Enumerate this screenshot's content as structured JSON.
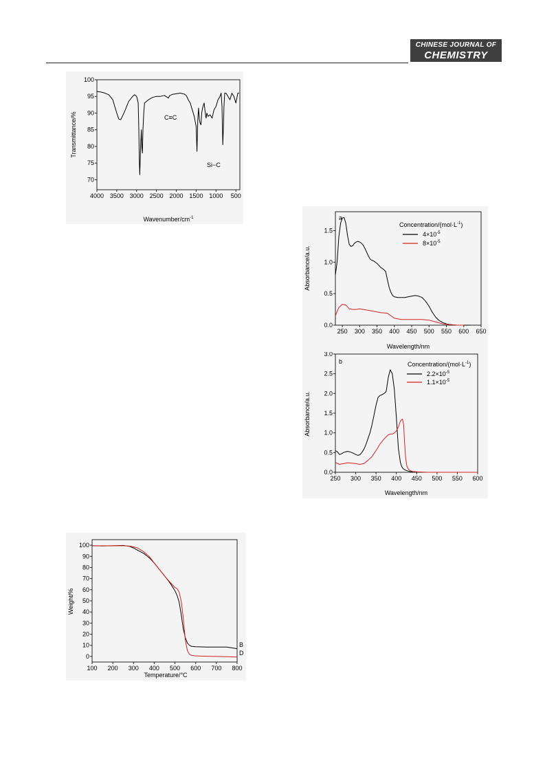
{
  "header": {
    "journal_line1": "CHINESE JOURNAL OF",
    "journal_line2": "CHEMISTRY"
  },
  "chart_data": [
    {
      "id": "ir",
      "type": "line",
      "xlabel": "Wavenumber/cm-1",
      "ylabel": "Transmittance/%",
      "xlim": [
        4000,
        400
      ],
      "ylim": [
        67,
        100
      ],
      "xticks": [
        4000,
        3500,
        3000,
        2500,
        2000,
        1500,
        1000,
        500
      ],
      "yticks": [
        70,
        75,
        80,
        85,
        90,
        95,
        100
      ],
      "annotations": [
        "C≡C",
        "Si−C"
      ],
      "series": [
        {
          "color": "#000000",
          "x": [
            4000,
            3900,
            3800,
            3700,
            3600,
            3500,
            3450,
            3400,
            3300,
            3200,
            3100,
            3050,
            3000,
            2960,
            2945,
            2930,
            2920,
            2900,
            2880,
            2870,
            2855,
            2840,
            2820,
            2800,
            2750,
            2700,
            2600,
            2500,
            2400,
            2300,
            2200,
            2170,
            2100,
            2000,
            1900,
            1800,
            1750,
            1700,
            1650,
            1600,
            1550,
            1500,
            1480,
            1460,
            1440,
            1420,
            1400,
            1380,
            1360,
            1340,
            1300,
            1260,
            1250,
            1230,
            1200,
            1150,
            1100,
            1050,
            1000,
            950,
            900,
            870,
            850,
            830,
            810,
            800,
            780,
            750,
            700,
            650,
            600,
            550,
            500,
            450,
            420
          ],
          "y": [
            96.5,
            96.3,
            96,
            95.5,
            94,
            90,
            88.2,
            88,
            90.5,
            93.5,
            95,
            95.5,
            95,
            93,
            85,
            75,
            71.5,
            80,
            85,
            80,
            78,
            85,
            90,
            93,
            93.5,
            94,
            94.7,
            95,
            95,
            95.3,
            94.5,
            95.2,
            95.6,
            95.8,
            96,
            95.7,
            95.3,
            94,
            93,
            91,
            89,
            86,
            78.5,
            88,
            91.5,
            88,
            87,
            86.5,
            90,
            91.5,
            93,
            89,
            88.5,
            90,
            89,
            89.5,
            88.5,
            91,
            92,
            94,
            95,
            96,
            92,
            80.5,
            87,
            92,
            96,
            96,
            95,
            94,
            96,
            95,
            93,
            96,
            96
          ]
        }
      ]
    },
    {
      "id": "uv-a",
      "type": "line",
      "panel_label": "a",
      "xlabel": "Wavelength/nm",
      "ylabel": "Absorbance/a.u.",
      "xlim": [
        230,
        650
      ],
      "ylim": [
        0,
        1.8
      ],
      "xticks": [
        250,
        300,
        350,
        400,
        450,
        500,
        550,
        600,
        650
      ],
      "yticks": [
        0.0,
        0.5,
        1.0,
        1.5
      ],
      "legend_title": "Concentration/(mol·L-1)",
      "legend_position": "top-right",
      "series": [
        {
          "name": "4×10-5",
          "color": "#000000",
          "x": [
            230,
            235,
            240,
            245,
            250,
            255,
            260,
            265,
            270,
            275,
            280,
            285,
            290,
            295,
            300,
            305,
            310,
            315,
            320,
            325,
            330,
            335,
            340,
            345,
            350,
            355,
            360,
            365,
            370,
            375,
            380,
            385,
            390,
            395,
            400,
            410,
            420,
            430,
            440,
            450,
            460,
            470,
            480,
            490,
            500,
            510,
            520,
            530,
            540,
            550,
            560,
            570,
            580,
            590,
            600,
            610,
            620
          ],
          "y": [
            0.8,
            1.0,
            1.4,
            1.62,
            1.7,
            1.71,
            1.62,
            1.42,
            1.28,
            1.25,
            1.26,
            1.3,
            1.32,
            1.33,
            1.32,
            1.3,
            1.27,
            1.22,
            1.16,
            1.1,
            1.05,
            1.03,
            1.02,
            1.0,
            0.98,
            0.95,
            0.92,
            0.9,
            0.88,
            0.85,
            0.72,
            0.6,
            0.52,
            0.47,
            0.45,
            0.44,
            0.44,
            0.44,
            0.45,
            0.46,
            0.47,
            0.46,
            0.44,
            0.38,
            0.3,
            0.2,
            0.12,
            0.07,
            0.04,
            0.02,
            0.01,
            0.005,
            0,
            0,
            0,
            0,
            0
          ]
        },
        {
          "name": "8×10-5",
          "color": "#d42020",
          "x": [
            230,
            240,
            250,
            260,
            270,
            280,
            290,
            300,
            310,
            320,
            340,
            360,
            380,
            400,
            420,
            440,
            460,
            480,
            500,
            520,
            540,
            560,
            580,
            600
          ],
          "y": [
            0.15,
            0.28,
            0.33,
            0.32,
            0.26,
            0.25,
            0.25,
            0.26,
            0.25,
            0.24,
            0.22,
            0.2,
            0.19,
            0.11,
            0.09,
            0.09,
            0.09,
            0.09,
            0.08,
            0.05,
            0.02,
            0.01,
            0,
            0
          ]
        }
      ]
    },
    {
      "id": "uv-b",
      "type": "line",
      "panel_label": "b",
      "xlabel": "Wavelength/nm",
      "ylabel": "Absorbance/a.u.",
      "xlim": [
        250,
        600
      ],
      "ylim": [
        0,
        3.0
      ],
      "xticks": [
        250,
        300,
        350,
        400,
        450,
        500,
        550,
        600
      ],
      "yticks": [
        0.0,
        0.5,
        1.0,
        1.5,
        2.0,
        2.5,
        3.0
      ],
      "legend_title": "Concentration/(mol·L-1)",
      "legend_position": "top-right",
      "series": [
        {
          "name": "2.2×10-5",
          "color": "#000000",
          "x": [
            250,
            255,
            260,
            265,
            270,
            275,
            280,
            285,
            290,
            295,
            300,
            305,
            310,
            315,
            320,
            325,
            330,
            335,
            340,
            345,
            350,
            355,
            360,
            365,
            370,
            375,
            380,
            385,
            390,
            395,
            400,
            405,
            410,
            413,
            416,
            420,
            423,
            426,
            430,
            433,
            436,
            440,
            445,
            450,
            460,
            480,
            500,
            550,
            600
          ],
          "y": [
            0.55,
            0.52,
            0.45,
            0.47,
            0.5,
            0.52,
            0.53,
            0.52,
            0.5,
            0.48,
            0.45,
            0.43,
            0.44,
            0.5,
            0.58,
            0.7,
            0.85,
            1.0,
            1.2,
            1.45,
            1.7,
            1.9,
            1.95,
            1.97,
            2.0,
            2.05,
            2.4,
            2.6,
            2.5,
            2.1,
            1.4,
            0.6,
            0.25,
            0.15,
            0.1,
            0.07,
            0.05,
            0.04,
            0.03,
            0.02,
            0.015,
            0.01,
            0.01,
            0.01,
            0.005,
            0,
            0,
            0,
            0
          ]
        },
        {
          "name": "1.1×10-5",
          "color": "#d42020",
          "x": [
            250,
            260,
            270,
            280,
            290,
            300,
            310,
            320,
            330,
            340,
            350,
            360,
            370,
            380,
            385,
            390,
            395,
            400,
            405,
            410,
            415,
            418,
            420,
            423,
            426,
            430,
            435,
            440,
            450,
            470,
            500,
            550,
            600
          ],
          "y": [
            0.25,
            0.2,
            0.22,
            0.24,
            0.23,
            0.22,
            0.2,
            0.22,
            0.3,
            0.4,
            0.55,
            0.72,
            0.85,
            0.95,
            0.97,
            0.97,
            1.0,
            1.05,
            1.15,
            1.3,
            1.35,
            1.2,
            0.8,
            0.35,
            0.15,
            0.07,
            0.04,
            0.02,
            0.01,
            0,
            0,
            0,
            0
          ]
        }
      ]
    },
    {
      "id": "tga",
      "type": "line",
      "xlabel": "Temperature/°C",
      "ylabel": "Weight/%",
      "xlim": [
        100,
        800
      ],
      "ylim": [
        -5,
        105
      ],
      "xticks": [
        100,
        200,
        300,
        400,
        500,
        600,
        700,
        800
      ],
      "yticks": [
        0,
        10,
        20,
        30,
        40,
        50,
        60,
        70,
        80,
        90,
        100
      ],
      "series": [
        {
          "name": "B",
          "color": "#000000",
          "x": [
            100,
            150,
            200,
            250,
            280,
            300,
            320,
            350,
            380,
            400,
            430,
            460,
            480,
            500,
            510,
            520,
            530,
            540,
            550,
            560,
            570,
            580,
            600,
            650,
            700,
            750,
            800
          ],
          "y": [
            99.5,
            99.4,
            99.5,
            99.8,
            99,
            97.5,
            95.5,
            92.5,
            88,
            84,
            77,
            70,
            65,
            59,
            55,
            49,
            38,
            25,
            17,
            12,
            10,
            9,
            8.7,
            8.5,
            8.5,
            8.4,
            7
          ]
        },
        {
          "name": "D",
          "color": "#d42020",
          "x": [
            100,
            150,
            200,
            250,
            280,
            300,
            320,
            350,
            380,
            400,
            430,
            460,
            480,
            500,
            510,
            520,
            530,
            540,
            550,
            560,
            570,
            580,
            600,
            650,
            700,
            750,
            800
          ],
          "y": [
            99.5,
            99.5,
            99.5,
            99.5,
            99.2,
            98.5,
            97.5,
            94,
            89,
            84,
            77,
            70,
            66,
            62,
            61,
            58,
            50,
            35,
            15,
            5,
            2,
            1,
            0.5,
            0.2,
            0,
            -0.2,
            -0.5
          ]
        }
      ]
    }
  ]
}
